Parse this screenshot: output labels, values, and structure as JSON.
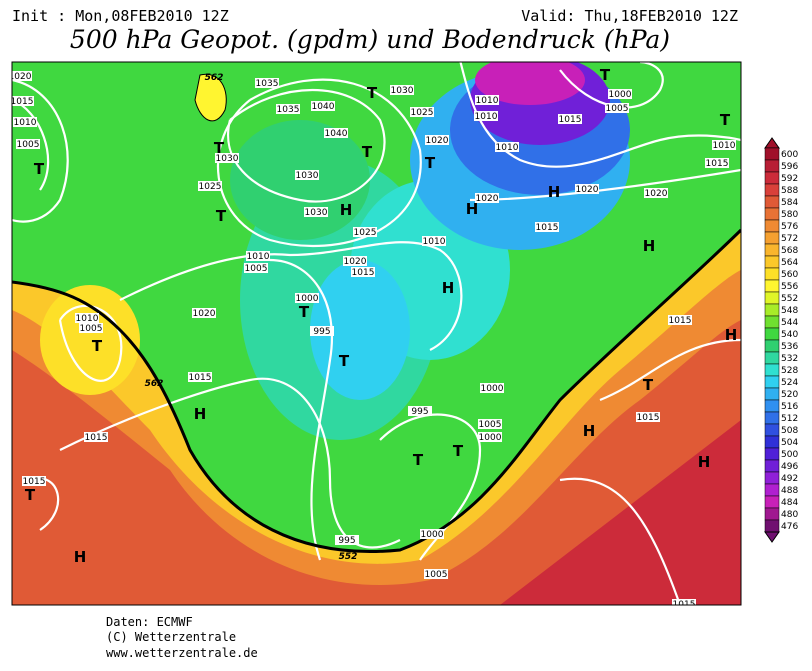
{
  "header": {
    "init": "Init : Mon,08FEB2010 12Z",
    "valid": "Valid: Thu,18FEB2010 12Z",
    "title": "500 hPa Geopot. (gpdm) und Bodendruck (hPa)"
  },
  "colorbar": {
    "values": [
      600,
      596,
      592,
      588,
      584,
      580,
      576,
      572,
      568,
      564,
      560,
      556,
      552,
      548,
      544,
      540,
      536,
      532,
      528,
      524,
      520,
      516,
      512,
      508,
      504,
      500,
      496,
      492,
      488,
      484,
      480,
      476
    ],
    "colors": [
      "#a0102a",
      "#b81e35",
      "#cc2b3a",
      "#d9403a",
      "#e05a36",
      "#e87235",
      "#ef8a33",
      "#f5a030",
      "#f9b52d",
      "#fbc82a",
      "#fde028",
      "#fff530",
      "#e0f528",
      "#a8ec28",
      "#70e030",
      "#40d840",
      "#30d070",
      "#30d8a0",
      "#30e0d0",
      "#30d0f0",
      "#30b0f0",
      "#3090f0",
      "#3070e8",
      "#3050e0",
      "#3030d8",
      "#5020d8",
      "#7020d8",
      "#9020d8",
      "#b020d0",
      "#c820b8",
      "#a01890",
      "#701070"
    ]
  },
  "isobar_labels": [
    "1020",
    "1015",
    "1010",
    "1005",
    "1035",
    "1035",
    "1040",
    "1040",
    "1030",
    "1025",
    "1020",
    "1010",
    "1010",
    "1010",
    "1000",
    "1005",
    "1015",
    "1010",
    "1015",
    "1020",
    "1020",
    "1020",
    "1015",
    "1010",
    "1025",
    "1020",
    "1015",
    "1030",
    "1030",
    "1030",
    "1025",
    "1010",
    "1005",
    "1000",
    "995",
    "1020",
    "1010",
    "1005",
    "1015",
    "1015",
    "1015",
    "995",
    "1000",
    "1005",
    "1000",
    "995",
    "1000",
    "1005",
    "1015",
    "1015",
    "1015"
  ],
  "geopotential_labels": [
    "562",
    "562",
    "552"
  ],
  "pressure_centers": [
    "T",
    "T",
    "T",
    "T",
    "T",
    "H",
    "T",
    "H",
    "H",
    "T",
    "T",
    "H",
    "H",
    "T",
    "T",
    "T",
    "H",
    "T",
    "T",
    "T",
    "H",
    "H",
    "H",
    "T",
    "H"
  ],
  "footer": [
    "Daten: ECMWF",
    "(C) Wetterzentrale",
    "www.wetterzentrale.de"
  ]
}
